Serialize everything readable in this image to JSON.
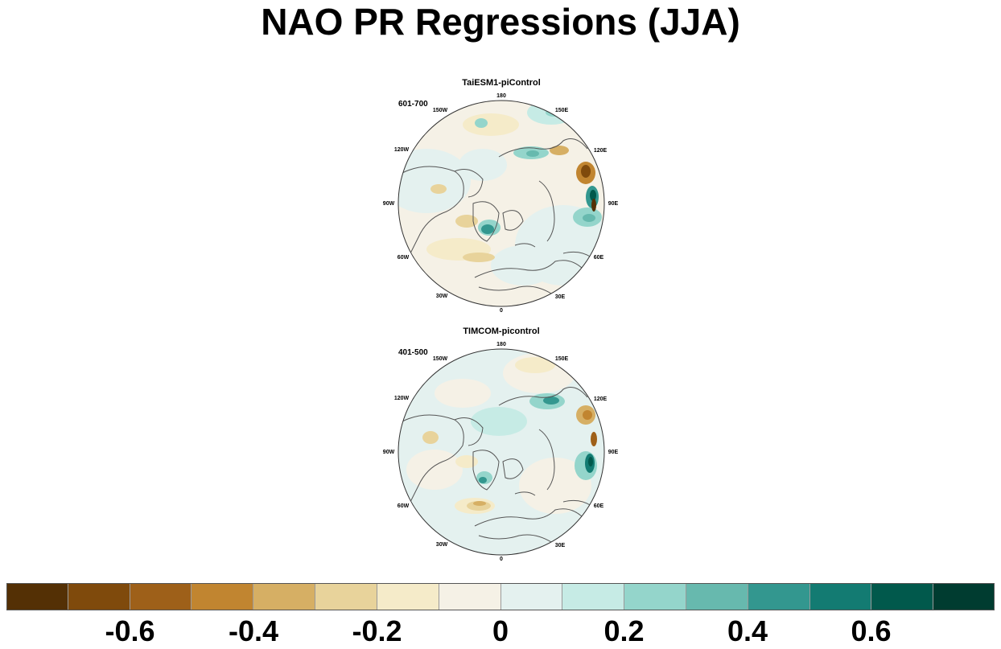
{
  "title": "NAO PR Regressions (JJA)",
  "panels": [
    {
      "name": "TaiESM1-piControl",
      "period": "601-700",
      "lon_labels": [
        "180",
        "150E",
        "120E",
        "90E",
        "60E",
        "30E",
        "0",
        "30W",
        "60W",
        "90W",
        "120W",
        "150W"
      ]
    },
    {
      "name": "TIMCOM-picontrol",
      "period": "401-500",
      "lon_labels": [
        "180",
        "150E",
        "120E",
        "90E",
        "60E",
        "30E",
        "0",
        "30W",
        "60W",
        "90W",
        "120W",
        "150W"
      ]
    }
  ],
  "colorbar": {
    "colors": [
      "#543005",
      "#7f4a0c",
      "#9e6019",
      "#c18530",
      "#d6af64",
      "#e8d39b",
      "#f5ebc9",
      "#f5f1e6",
      "#e4f1ef",
      "#c6ebe5",
      "#94d5cb",
      "#67b9ae",
      "#33978f",
      "#137b72",
      "#01594c",
      "#003c30"
    ],
    "labels": [
      "-0.6",
      "-0.4",
      "-0.2",
      "0",
      "0.2",
      "0.4",
      "0.6"
    ],
    "label_levels": [
      -0.6,
      -0.4,
      -0.2,
      0,
      0.2,
      0.4,
      0.6
    ],
    "range": [
      -0.8,
      0.8
    ]
  }
}
